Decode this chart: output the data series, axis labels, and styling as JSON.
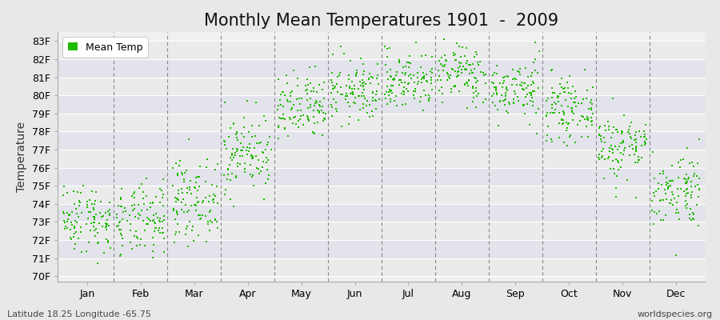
{
  "title": "Monthly Mean Temperatures 1901  -  2009",
  "ylabel": "Temperature",
  "xlabel_labels": [
    "Jan",
    "Feb",
    "Mar",
    "Apr",
    "May",
    "Jun",
    "Jul",
    "Aug",
    "Sep",
    "Oct",
    "Nov",
    "Dec"
  ],
  "ytick_labels": [
    "70F",
    "71F",
    "72F",
    "73F",
    "74F",
    "75F",
    "76F",
    "77F",
    "78F",
    "79F",
    "80F",
    "81F",
    "82F",
    "83F"
  ],
  "ytick_values": [
    70,
    71,
    72,
    73,
    74,
    75,
    76,
    77,
    78,
    79,
    80,
    81,
    82,
    83
  ],
  "ylim": [
    69.7,
    83.5
  ],
  "legend_label": "Mean Temp",
  "dot_color": "#22bb00",
  "background_color": "#e8e8e8",
  "plot_bg_color_light": "#f0f0f0",
  "plot_bg_color_dark": "#e0e0e8",
  "grid_color": "#ffffff",
  "dashed_line_color": "#888888",
  "subtitle": "Latitude 18.25 Longitude -65.75",
  "watermark": "worldspecies.org",
  "title_fontsize": 15,
  "axis_fontsize": 9,
  "label_fontsize": 10,
  "monthly_means": [
    73.2,
    73.0,
    74.2,
    76.8,
    79.2,
    80.2,
    80.8,
    81.2,
    80.3,
    79.2,
    77.2,
    74.8
  ],
  "monthly_stds": [
    0.95,
    1.0,
    1.1,
    1.1,
    0.95,
    0.85,
    0.82,
    0.82,
    0.82,
    0.82,
    0.95,
    1.05
  ],
  "num_years": 109,
  "dot_size": 3,
  "seed": 42
}
